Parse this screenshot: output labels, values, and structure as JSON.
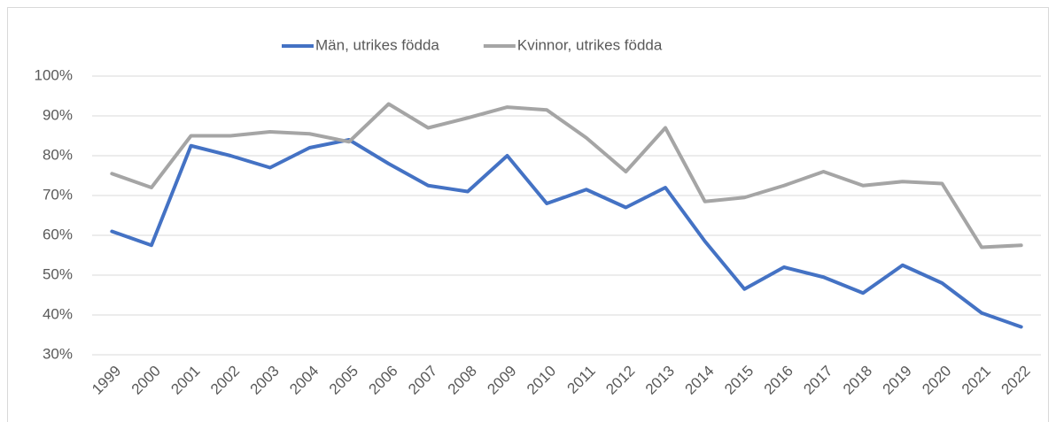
{
  "chart_data": {
    "type": "line",
    "categories": [
      "1999",
      "2000",
      "2001",
      "2002",
      "2003",
      "2004",
      "2005",
      "2006",
      "2007",
      "2008",
      "2009",
      "2010",
      "2011",
      "2012",
      "2013",
      "2014",
      "2015",
      "2016",
      "2017",
      "2018",
      "2019",
      "2020",
      "2021",
      "2022"
    ],
    "series": [
      {
        "name": "Män,  utrikes födda",
        "color": "#4472c4",
        "values": [
          61,
          57.5,
          82.5,
          80,
          77,
          82,
          84,
          78,
          72.5,
          71,
          80,
          68,
          71.5,
          67,
          72,
          58.5,
          46.5,
          52,
          49.5,
          45.5,
          52.5,
          48,
          40.5,
          37
        ]
      },
      {
        "name": "Kvinnor,  utrikes födda",
        "color": "#a5a5a5",
        "values": [
          75.5,
          72,
          85,
          85,
          86,
          85.5,
          83.5,
          93,
          87,
          89.5,
          92.2,
          91.5,
          84.5,
          76,
          87,
          68.5,
          69.5,
          72.5,
          76,
          72.5,
          73.5,
          73,
          57,
          57.5
        ]
      }
    ],
    "ylim": [
      30,
      100
    ],
    "yticks": [
      {
        "value": 30,
        "label": "30%"
      },
      {
        "value": 40,
        "label": "40%"
      },
      {
        "value": 50,
        "label": "50%"
      },
      {
        "value": 60,
        "label": "60%"
      },
      {
        "value": 70,
        "label": "70%"
      },
      {
        "value": 80,
        "label": "80%"
      },
      {
        "value": 90,
        "label": "90%"
      },
      {
        "value": 100,
        "label": "100%"
      }
    ],
    "grid": true,
    "legend": "top"
  }
}
